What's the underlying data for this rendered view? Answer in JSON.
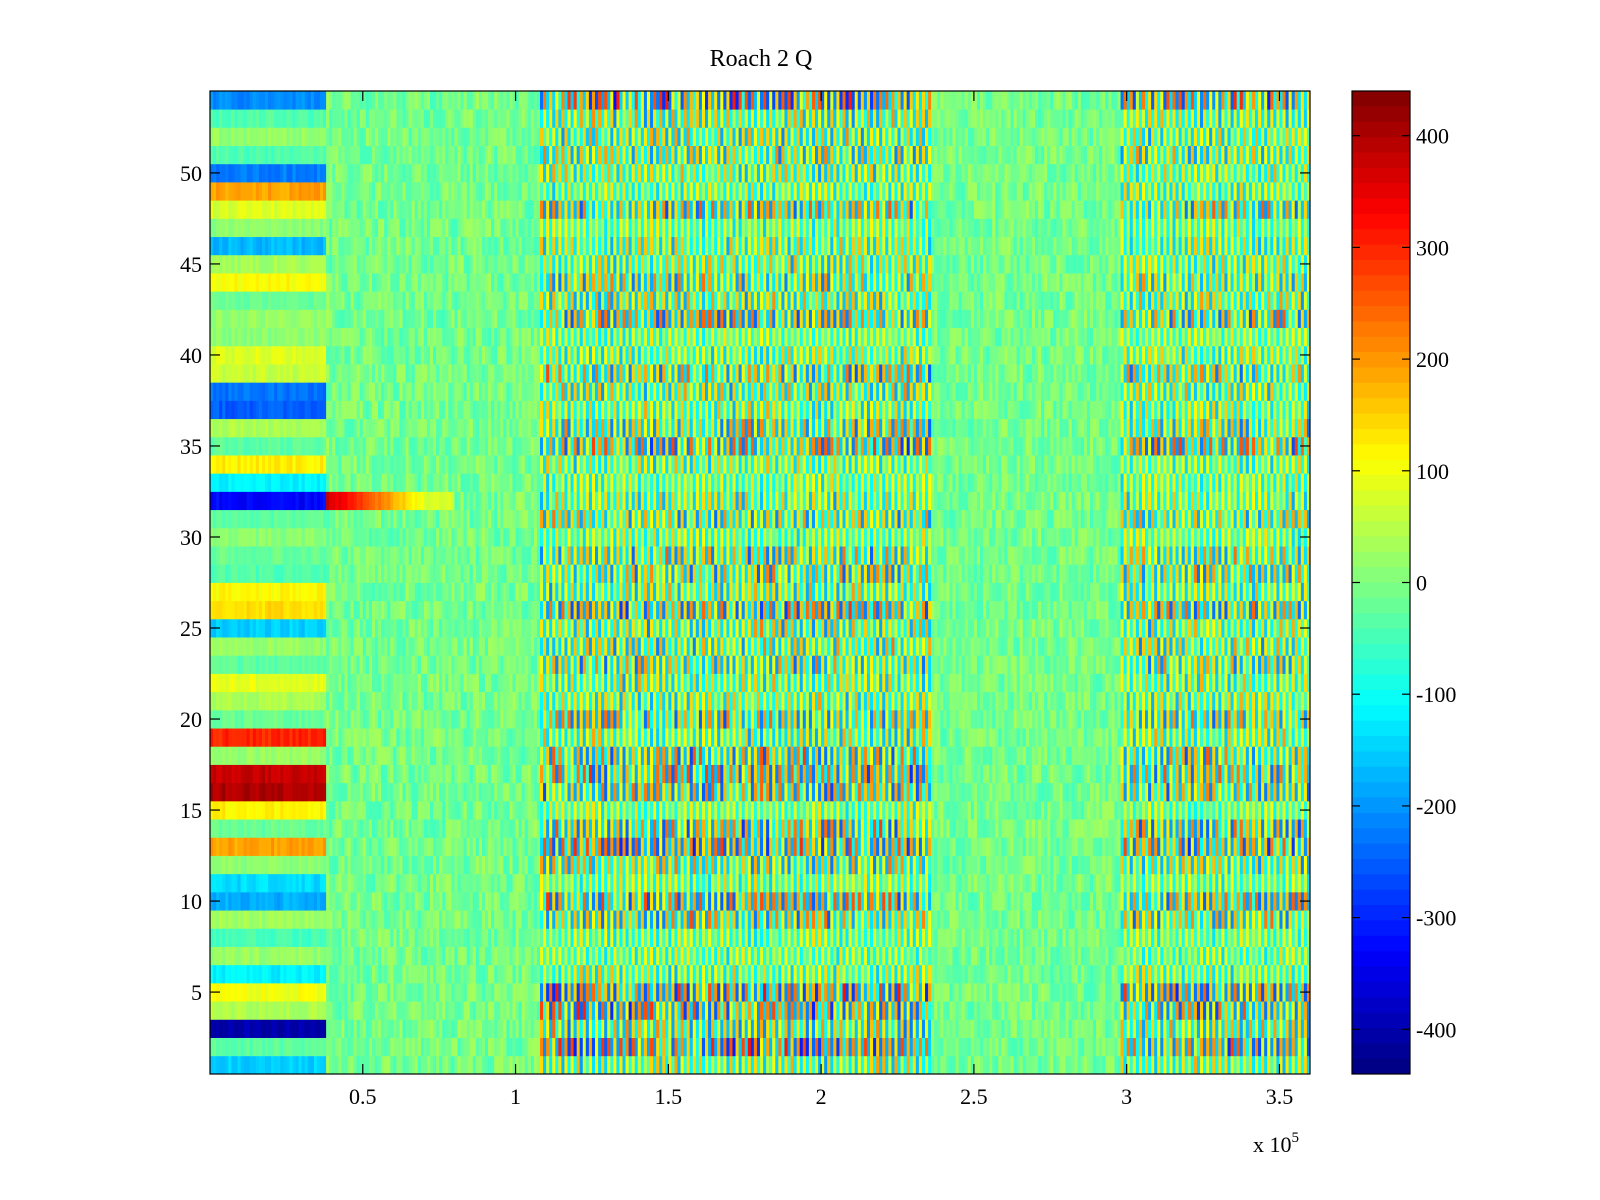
{
  "chart_data": {
    "type": "heatmap",
    "title": "Roach 2 Q",
    "xlabel": "",
    "ylabel": "",
    "x_multiplier_label": "x 10",
    "x_multiplier_exponent": "5",
    "x_range": [
      0,
      360000
    ],
    "y_range": [
      0.5,
      54.5
    ],
    "x_ticks": [
      {
        "value": 50000,
        "label": "0.5"
      },
      {
        "value": 100000,
        "label": "1"
      },
      {
        "value": 150000,
        "label": "1.5"
      },
      {
        "value": 200000,
        "label": "2"
      },
      {
        "value": 250000,
        "label": "2.5"
      },
      {
        "value": 300000,
        "label": "3"
      },
      {
        "value": 350000,
        "label": "3.5"
      }
    ],
    "y_ticks": [
      {
        "value": 5,
        "label": "5"
      },
      {
        "value": 10,
        "label": "10"
      },
      {
        "value": 15,
        "label": "15"
      },
      {
        "value": 20,
        "label": "20"
      },
      {
        "value": 25,
        "label": "25"
      },
      {
        "value": 30,
        "label": "30"
      },
      {
        "value": 35,
        "label": "35"
      },
      {
        "value": 40,
        "label": "40"
      },
      {
        "value": 45,
        "label": "45"
      },
      {
        "value": 50,
        "label": "50"
      }
    ],
    "grid": false,
    "colormap": "jet",
    "colorbar": {
      "range": [
        -440,
        440
      ],
      "ticks": [
        {
          "value": 400,
          "label": "400"
        },
        {
          "value": 300,
          "label": "300"
        },
        {
          "value": 200,
          "label": "200"
        },
        {
          "value": 100,
          "label": "100"
        },
        {
          "value": 0,
          "label": "0"
        },
        {
          "value": -100,
          "label": "-100"
        },
        {
          "value": -200,
          "label": "-200"
        },
        {
          "value": -300,
          "label": "-300"
        },
        {
          "value": -400,
          "label": "-400"
        }
      ]
    },
    "channels": 54,
    "channel_offsets_left_block": {
      "comment_free": true,
      "1": -150,
      "2": -30,
      "3": -400,
      "4": 40,
      "5": 100,
      "6": -120,
      "7": 20,
      "8": -50,
      "9": 30,
      "10": -180,
      "11": -140,
      "12": 10,
      "13": 190,
      "14": -20,
      "15": 120,
      "16": 400,
      "17": 380,
      "18": 20,
      "19": 300,
      "20": -20,
      "21": 40,
      "22": 90,
      "23": -30,
      "24": 20,
      "25": -150,
      "26": 140,
      "27": 110,
      "28": -40,
      "29": -20,
      "30": 10,
      "31": -30,
      "32": -330,
      "33": -120,
      "34": 120,
      "35": -30,
      "36": 40,
      "37": -250,
      "38": -230,
      "39": 60,
      "40": 80,
      "41": 10,
      "42": 20,
      "43": -20,
      "44": 110,
      "45": 30,
      "46": -170,
      "47": 10,
      "48": 80,
      "49": 190,
      "50": -220,
      "51": -40,
      "52": 20,
      "53": -40,
      "54": -210
    },
    "segments": [
      {
        "x_start": 0,
        "x_end": 38000,
        "kind": "left-block"
      },
      {
        "x_start": 38000,
        "x_end": 108000,
        "kind": "quiet",
        "channel_32_value_peak": 380
      },
      {
        "x_start": 108000,
        "x_end": 236000,
        "kind": "oscillating",
        "amplitude": 300
      },
      {
        "x_start": 236000,
        "x_end": 298000,
        "kind": "quiet"
      },
      {
        "x_start": 298000,
        "x_end": 360000,
        "kind": "oscillating",
        "amplitude": 280
      }
    ]
  }
}
